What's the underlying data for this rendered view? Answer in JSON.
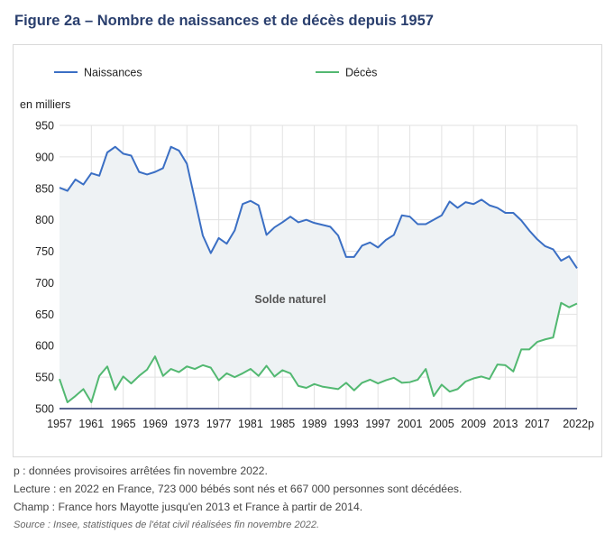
{
  "title": "Figure 2a – Nombre de naissances et de décès depuis 1957",
  "notes": {
    "provisional": "p : données provisoires arrêtées fin novembre 2022.",
    "reading": "Lecture : en 2022 en France, 723 000 bébés sont nés et 667 000 personnes sont décédées.",
    "scope": "Champ : France hors Mayotte jusqu'en 2013 et France à partir de 2014.",
    "source": "Source : Insee, statistiques de l'état civil réalisées fin novembre 2022."
  },
  "colors": {
    "births": "#3b6fc4",
    "deaths": "#52b871",
    "fill": "#eef2f4",
    "axis": "#22306a",
    "grid": "#e2e2e2"
  },
  "chart_data": {
    "type": "line",
    "title": "Figure 2a – Nombre de naissances et de décès depuis 1957",
    "ylabel": "en milliers",
    "xlabel": "",
    "ylim": [
      500,
      950
    ],
    "yticks": [
      500,
      550,
      600,
      650,
      700,
      750,
      800,
      850,
      900,
      950
    ],
    "xticks": [
      "1957",
      "1961",
      "1965",
      "1969",
      "1973",
      "1977",
      "1981",
      "1985",
      "1989",
      "1993",
      "1997",
      "2001",
      "2005",
      "2009",
      "2013",
      "2017",
      "2022p"
    ],
    "legend": "top",
    "annotation": "Solde naturel",
    "x": [
      "1957",
      "1958",
      "1959",
      "1960",
      "1961",
      "1962",
      "1963",
      "1964",
      "1965",
      "1966",
      "1967",
      "1968",
      "1969",
      "1970",
      "1971",
      "1972",
      "1973",
      "1974",
      "1975",
      "1976",
      "1977",
      "1978",
      "1979",
      "1980",
      "1981",
      "1982",
      "1983",
      "1984",
      "1985",
      "1986",
      "1987",
      "1988",
      "1989",
      "1990",
      "1991",
      "1992",
      "1993",
      "1994",
      "1995",
      "1996",
      "1997",
      "1998",
      "1999",
      "2000",
      "2001",
      "2002",
      "2003",
      "2004",
      "2005",
      "2006",
      "2007",
      "2008",
      "2009",
      "2010",
      "2011",
      "2012",
      "2013",
      "2014",
      "2015",
      "2016",
      "2017",
      "2018",
      "2019",
      "2020",
      "2021",
      "2022p"
    ],
    "series": [
      {
        "name": "Naissances",
        "values": [
          851,
          846,
          864,
          856,
          874,
          870,
          907,
          916,
          905,
          902,
          876,
          872,
          876,
          882,
          916,
          910,
          889,
          832,
          775,
          747,
          771,
          762,
          783,
          825,
          830,
          823,
          776,
          788,
          796,
          805,
          796,
          800,
          795,
          792,
          789,
          775,
          741,
          741,
          759,
          764,
          756,
          768,
          776,
          807,
          805,
          793,
          793,
          800,
          807,
          829,
          819,
          828,
          825,
          832,
          823,
          819,
          811,
          811,
          799,
          783,
          769,
          758,
          753,
          735,
          742,
          723
        ]
      },
      {
        "name": "Décès",
        "values": [
          547,
          510,
          520,
          531,
          510,
          552,
          567,
          530,
          551,
          540,
          552,
          562,
          583,
          552,
          563,
          558,
          567,
          563,
          569,
          565,
          545,
          556,
          550,
          556,
          563,
          552,
          568,
          551,
          561,
          556,
          536,
          533,
          539,
          535,
          533,
          531,
          541,
          529,
          541,
          546,
          540,
          545,
          549,
          541,
          542,
          546,
          563,
          520,
          538,
          527,
          531,
          543,
          548,
          551,
          547,
          570,
          569,
          559,
          594,
          594,
          606,
          610,
          613,
          668,
          661,
          667
        ]
      }
    ]
  }
}
